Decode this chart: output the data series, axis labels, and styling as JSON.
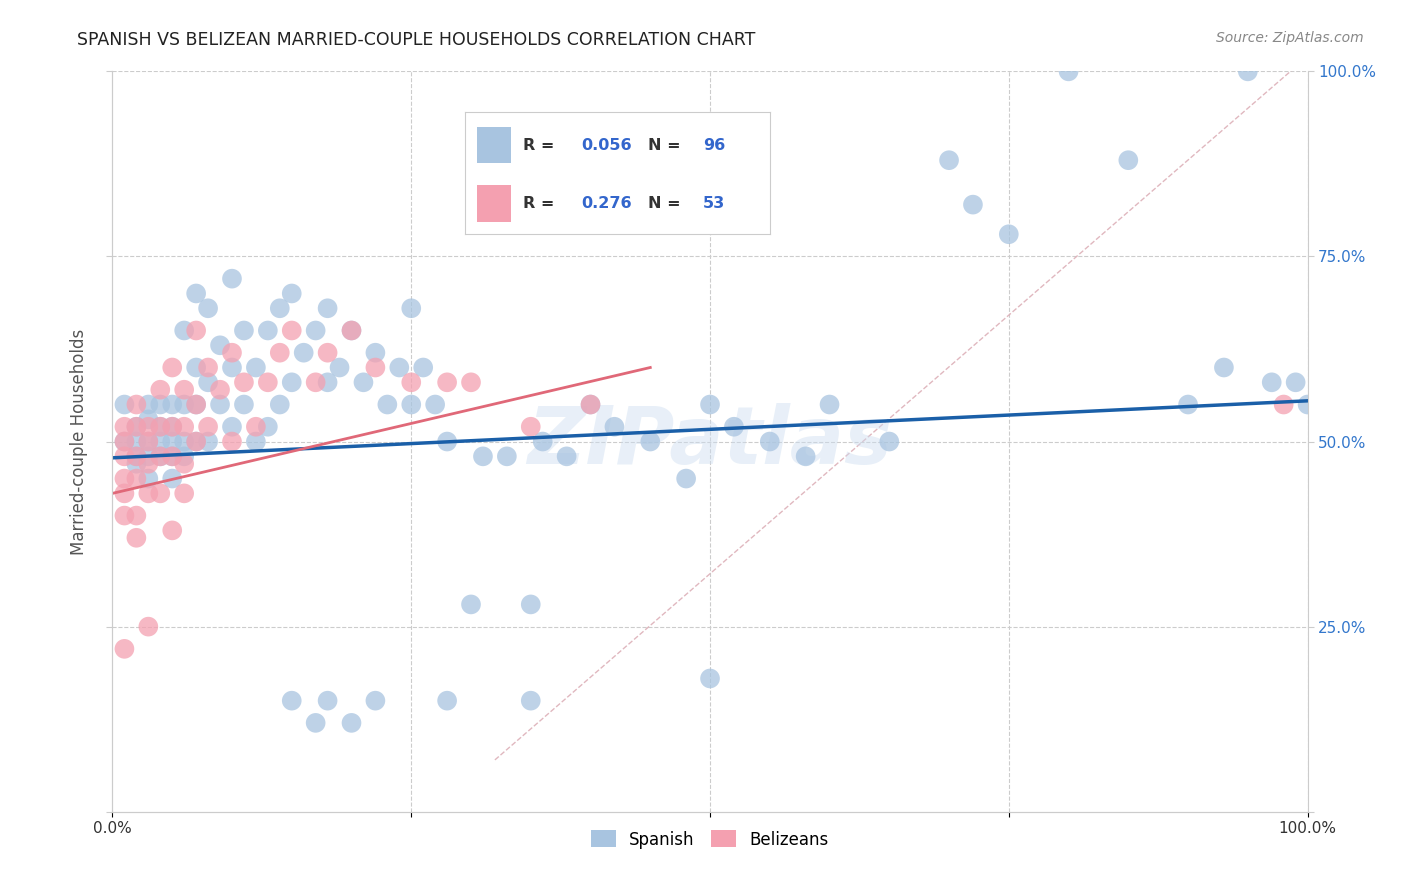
{
  "title": "SPANISH VS BELIZEAN MARRIED-COUPLE HOUSEHOLDS CORRELATION CHART",
  "source": "Source: ZipAtlas.com",
  "ylabel": "Married-couple Households",
  "xlim": [
    0,
    1
  ],
  "ylim": [
    0,
    1
  ],
  "background_color": "#ffffff",
  "blue_color": "#a8c4e0",
  "pink_color": "#f4a0b0",
  "line_blue": "#1a5fa8",
  "line_pink": "#e06878",
  "legend_R1": "0.056",
  "legend_N1": "96",
  "legend_R2": "0.276",
  "legend_N2": "53",
  "spanish_x": [
    0.01,
    0.01,
    0.02,
    0.02,
    0.02,
    0.02,
    0.03,
    0.03,
    0.03,
    0.03,
    0.03,
    0.04,
    0.04,
    0.04,
    0.04,
    0.05,
    0.05,
    0.05,
    0.05,
    0.05,
    0.06,
    0.06,
    0.06,
    0.06,
    0.07,
    0.07,
    0.07,
    0.07,
    0.08,
    0.08,
    0.08,
    0.09,
    0.09,
    0.1,
    0.1,
    0.1,
    0.11,
    0.11,
    0.12,
    0.12,
    0.13,
    0.13,
    0.14,
    0.14,
    0.15,
    0.15,
    0.16,
    0.17,
    0.18,
    0.18,
    0.19,
    0.2,
    0.21,
    0.22,
    0.23,
    0.24,
    0.25,
    0.25,
    0.26,
    0.27,
    0.28,
    0.3,
    0.31,
    0.33,
    0.35,
    0.36,
    0.38,
    0.4,
    0.42,
    0.45,
    0.48,
    0.5,
    0.52,
    0.55,
    0.58,
    0.6,
    0.65,
    0.7,
    0.72,
    0.75,
    0.8,
    0.85,
    0.9,
    0.93,
    0.95,
    0.97,
    0.99,
    1.0,
    0.35,
    0.5,
    0.22,
    0.18,
    0.17,
    0.15,
    0.28,
    0.2
  ],
  "spanish_y": [
    0.5,
    0.55,
    0.52,
    0.48,
    0.5,
    0.47,
    0.55,
    0.5,
    0.48,
    0.53,
    0.45,
    0.52,
    0.48,
    0.55,
    0.5,
    0.52,
    0.48,
    0.55,
    0.45,
    0.5,
    0.65,
    0.55,
    0.5,
    0.48,
    0.7,
    0.6,
    0.55,
    0.5,
    0.68,
    0.58,
    0.5,
    0.63,
    0.55,
    0.72,
    0.6,
    0.52,
    0.65,
    0.55,
    0.6,
    0.5,
    0.65,
    0.52,
    0.68,
    0.55,
    0.7,
    0.58,
    0.62,
    0.65,
    0.68,
    0.58,
    0.6,
    0.65,
    0.58,
    0.62,
    0.55,
    0.6,
    0.68,
    0.55,
    0.6,
    0.55,
    0.5,
    0.28,
    0.48,
    0.48,
    0.28,
    0.5,
    0.48,
    0.55,
    0.52,
    0.5,
    0.45,
    0.55,
    0.52,
    0.5,
    0.48,
    0.55,
    0.5,
    0.88,
    0.82,
    0.78,
    1.0,
    0.88,
    0.55,
    0.6,
    1.0,
    0.58,
    0.58,
    0.55,
    0.15,
    0.18,
    0.15,
    0.15,
    0.12,
    0.15,
    0.15,
    0.12
  ],
  "belizean_x": [
    0.01,
    0.01,
    0.01,
    0.01,
    0.01,
    0.01,
    0.02,
    0.02,
    0.02,
    0.02,
    0.02,
    0.02,
    0.03,
    0.03,
    0.03,
    0.03,
    0.03,
    0.04,
    0.04,
    0.04,
    0.04,
    0.05,
    0.05,
    0.05,
    0.05,
    0.06,
    0.06,
    0.06,
    0.06,
    0.07,
    0.07,
    0.07,
    0.08,
    0.08,
    0.09,
    0.1,
    0.1,
    0.11,
    0.12,
    0.13,
    0.14,
    0.15,
    0.17,
    0.18,
    0.2,
    0.22,
    0.25,
    0.28,
    0.3,
    0.35,
    0.4,
    0.98,
    0.01
  ],
  "belizean_y": [
    0.52,
    0.5,
    0.48,
    0.45,
    0.43,
    0.4,
    0.55,
    0.52,
    0.48,
    0.45,
    0.4,
    0.37,
    0.52,
    0.5,
    0.47,
    0.43,
    0.25,
    0.57,
    0.52,
    0.48,
    0.43,
    0.6,
    0.52,
    0.48,
    0.38,
    0.57,
    0.52,
    0.47,
    0.43,
    0.65,
    0.55,
    0.5,
    0.6,
    0.52,
    0.57,
    0.62,
    0.5,
    0.58,
    0.52,
    0.58,
    0.62,
    0.65,
    0.58,
    0.62,
    0.65,
    0.6,
    0.58,
    0.58,
    0.58,
    0.52,
    0.55,
    0.55,
    0.22
  ]
}
